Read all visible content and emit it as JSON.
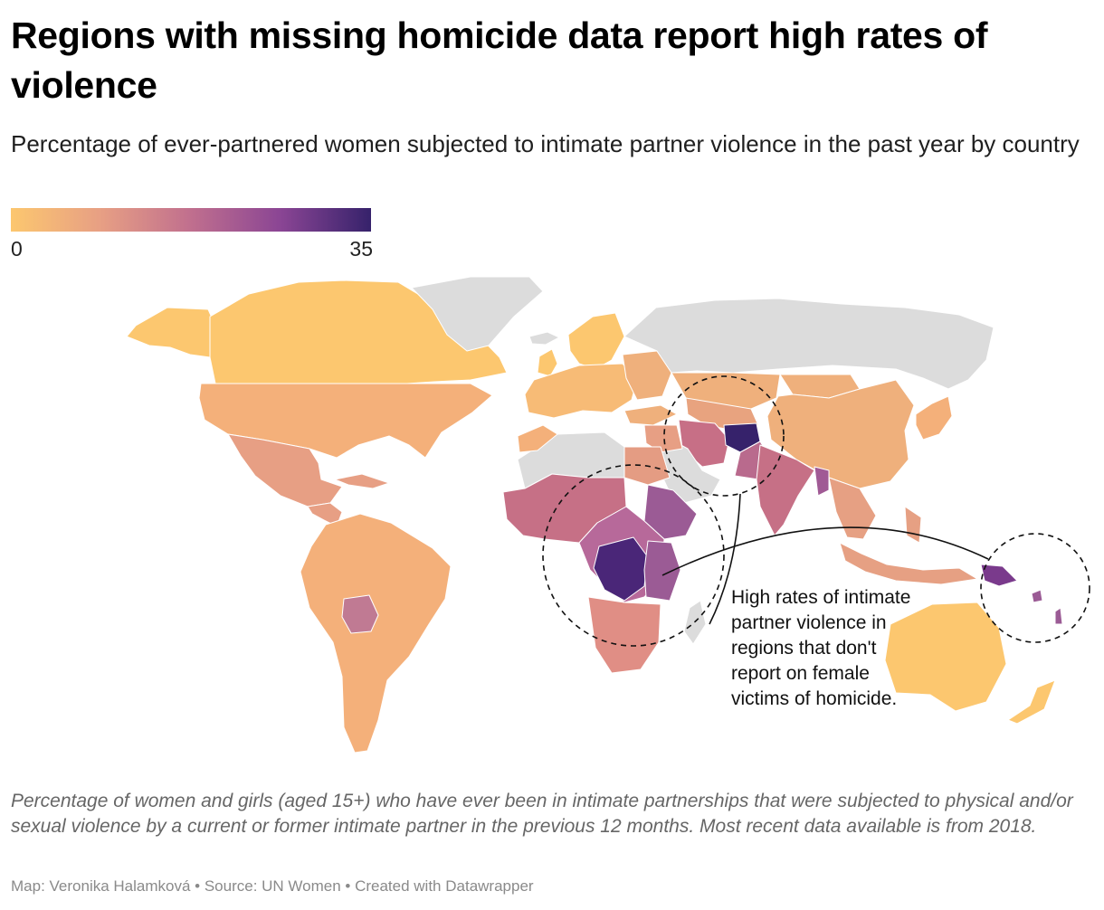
{
  "title": "Regions with missing homicide data report high rates of violence",
  "subtitle": "Percentage of ever-partnered women subjected to intimate partner violence in the past year by country",
  "legend": {
    "min_label": "0",
    "max_label": "35",
    "min_value": 0,
    "max_value": 35,
    "color_stops": [
      "#fcc76f",
      "#e79f84",
      "#c06f8e",
      "#8a4594",
      "#36226b"
    ]
  },
  "map": {
    "no_data_color": "#dcdcdc",
    "border_color": "#ffffff",
    "highlight_circles": [
      {
        "region": "central-asia",
        "style": "dashed"
      },
      {
        "region": "central-africa",
        "style": "dashed"
      },
      {
        "region": "oceania",
        "style": "dashed"
      }
    ]
  },
  "annotation": {
    "text": "High rates of intimate partner violence in regions that don't report on female victims of homicide."
  },
  "footnote": "Percentage of women and girls (aged 15+) who have ever been in intimate partnerships that were subjected to physical and/or sexual violence by a current or former intimate partner in the previous 12 months. Most recent data available is from 2018.",
  "credit": "Map: Veronika Halamková • Source: UN Women • Created with Datawrapper"
}
